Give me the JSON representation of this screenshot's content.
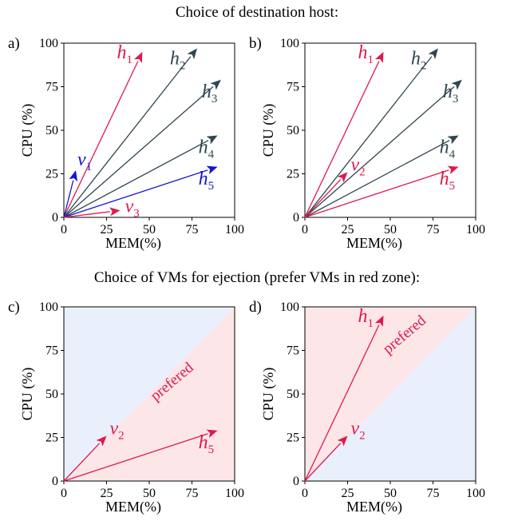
{
  "headings": {
    "top": "Choice of destination host:",
    "middle": "Choice of VMs for ejection (prefer VMs in red zone):"
  },
  "colors": {
    "red": "#e0194c",
    "gray": "#2f4650",
    "blue": "#1515d6",
    "zone_red": "#fce6e8",
    "zone_blue": "#e9f0fb"
  },
  "chart_data": [
    {
      "type": "vector",
      "panel_label": "a)",
      "xlabel": "MEM(%)",
      "ylabel": "CPU (%)",
      "xlim": [
        0,
        100
      ],
      "ylim": [
        0,
        100
      ],
      "xticks": [
        "0",
        "25",
        "50",
        "75",
        "100"
      ],
      "yticks": [
        "0",
        "25",
        "50",
        "75",
        "100"
      ],
      "zones": null,
      "vectors": [
        {
          "name": "h",
          "sub": "1",
          "x": 46,
          "y": 95,
          "color": "red"
        },
        {
          "name": "h",
          "sub": "2",
          "x": 78,
          "y": 97,
          "color": "gray"
        },
        {
          "name": "h",
          "sub": "3",
          "x": 92,
          "y": 79,
          "color": "gray"
        },
        {
          "name": "h",
          "sub": "4",
          "x": 90,
          "y": 47,
          "color": "gray"
        },
        {
          "name": "h",
          "sub": "5",
          "x": 90,
          "y": 29,
          "color": "blue"
        },
        {
          "name": "v",
          "sub": "1",
          "x": 7,
          "y": 27,
          "color": "blue"
        },
        {
          "name": "v",
          "sub": "3",
          "x": 33,
          "y": 4,
          "color": "red"
        }
      ]
    },
    {
      "type": "vector",
      "panel_label": "b)",
      "xlabel": "MEM(%)",
      "ylabel": "CPU (%)",
      "xlim": [
        0,
        100
      ],
      "ylim": [
        0,
        100
      ],
      "xticks": [
        "0",
        "25",
        "50",
        "75",
        "100"
      ],
      "yticks": [
        "0",
        "25",
        "50",
        "75",
        "100"
      ],
      "zones": null,
      "vectors": [
        {
          "name": "h",
          "sub": "1",
          "x": 46,
          "y": 95,
          "color": "red"
        },
        {
          "name": "h",
          "sub": "2",
          "x": 78,
          "y": 97,
          "color": "gray"
        },
        {
          "name": "h",
          "sub": "3",
          "x": 92,
          "y": 79,
          "color": "gray"
        },
        {
          "name": "h",
          "sub": "4",
          "x": 90,
          "y": 47,
          "color": "gray"
        },
        {
          "name": "h",
          "sub": "5",
          "x": 90,
          "y": 29,
          "color": "red"
        },
        {
          "name": "v",
          "sub": "2",
          "x": 25,
          "y": 26,
          "color": "red"
        }
      ]
    },
    {
      "type": "vector",
      "panel_label": "c)",
      "xlabel": "MEM(%)",
      "ylabel": "CPU (%)",
      "xlim": [
        0,
        100
      ],
      "ylim": [
        0,
        100
      ],
      "xticks": [
        "0",
        "25",
        "50",
        "75",
        "100"
      ],
      "yticks": [
        "0",
        "25",
        "50",
        "75",
        "100"
      ],
      "zones": {
        "red": "below-diagonal",
        "blue": "above-diagonal",
        "label": "prefered",
        "label_at": [
          65,
          55
        ]
      },
      "vectors": [
        {
          "name": "h",
          "sub": "5",
          "x": 90,
          "y": 29,
          "color": "red"
        },
        {
          "name": "v",
          "sub": "2",
          "x": 25,
          "y": 26,
          "color": "red"
        }
      ]
    },
    {
      "type": "vector",
      "panel_label": "d)",
      "xlabel": "MEM(%)",
      "ylabel": "CPU (%)",
      "xlim": [
        0,
        100
      ],
      "ylim": [
        0,
        100
      ],
      "xticks": [
        "0",
        "25",
        "50",
        "75",
        "100"
      ],
      "yticks": [
        "0",
        "25",
        "50",
        "75",
        "100"
      ],
      "zones": {
        "red": "above-diagonal",
        "blue": "below-diagonal",
        "label": "prefered",
        "label_at": [
          60,
          82
        ]
      },
      "vectors": [
        {
          "name": "h",
          "sub": "1",
          "x": 46,
          "y": 95,
          "color": "red"
        },
        {
          "name": "v",
          "sub": "2",
          "x": 25,
          "y": 26,
          "color": "red"
        }
      ]
    }
  ]
}
